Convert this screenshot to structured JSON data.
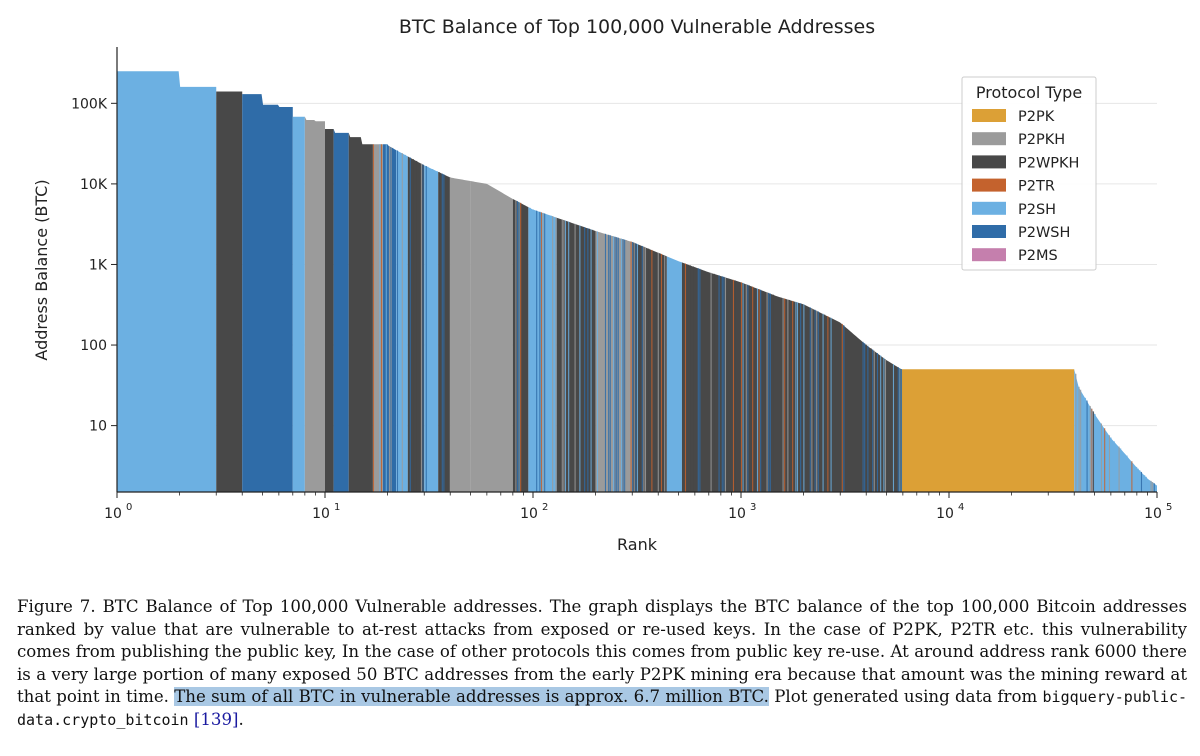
{
  "chart_data": {
    "type": "bar",
    "title": "BTC Balance of Top 100,000 Vulnerable Addresses",
    "xlabel": "Rank",
    "ylabel": "Address Balance (BTC)",
    "x_scale": "log",
    "y_scale": "log",
    "xlim": [
      1,
      100000
    ],
    "ylim": [
      1.5,
      500000
    ],
    "x_ticks": [
      1,
      10,
      100,
      1000,
      10000,
      100000
    ],
    "x_tick_labels": [
      "10",
      "10",
      "10",
      "10",
      "10",
      "10"
    ],
    "x_tick_exponents": [
      "0",
      "1",
      "2",
      "3",
      "4",
      "5"
    ],
    "y_ticks": [
      10,
      100,
      1000,
      10000,
      100000
    ],
    "y_tick_labels": [
      "10",
      "100",
      "1K",
      "10K",
      "100K"
    ],
    "grid": "horizontal",
    "legend": {
      "title": "Protocol Type",
      "placement": "upper-right",
      "entries": [
        {
          "name": "P2PK",
          "color": "#dca036"
        },
        {
          "name": "P2PKH",
          "color": "#9b9b9b"
        },
        {
          "name": "P2WPKH",
          "color": "#484848"
        },
        {
          "name": "P2TR",
          "color": "#c4622d"
        },
        {
          "name": "P2SH",
          "color": "#6cb0e2"
        },
        {
          "name": "P2WSH",
          "color": "#2f6ca8"
        },
        {
          "name": "P2MS",
          "color": "#c57fad"
        }
      ]
    },
    "curve": {
      "rank": [
        1,
        2,
        3,
        4,
        5,
        6,
        7,
        8,
        9,
        10,
        11,
        13,
        15,
        20,
        30,
        40,
        60,
        80,
        100,
        200,
        300,
        500,
        700,
        1000,
        1500,
        2000,
        3000,
        4000,
        5000,
        5900,
        6000,
        40000,
        42000,
        50000,
        60000,
        70000,
        80000,
        90000,
        100000
      ],
      "balance": [
        250000,
        160000,
        140000,
        130000,
        96000,
        90000,
        68000,
        62000,
        60000,
        48000,
        43000,
        38000,
        31000,
        30000,
        17000,
        12000,
        10000,
        6500,
        4800,
        2600,
        1900,
        1100,
        800,
        600,
        400,
        320,
        190,
        100,
        65,
        50,
        50,
        50,
        30,
        14,
        7,
        4.5,
        3,
        2.2,
        1.8
      ]
    },
    "segments": [
      {
        "from": 1,
        "to": 3,
        "type": "P2SH"
      },
      {
        "from": 3,
        "to": 4,
        "type": "P2WPKH"
      },
      {
        "from": 4,
        "to": 7,
        "type": "P2WSH"
      },
      {
        "from": 7,
        "to": 8,
        "type": "P2SH"
      },
      {
        "from": 8,
        "to": 10,
        "type": "P2PKH"
      },
      {
        "from": 10,
        "to": 11,
        "type": "P2WPKH"
      },
      {
        "from": 11,
        "to": 13,
        "type": "P2WSH"
      },
      {
        "from": 13,
        "to": 17,
        "type": "P2WPKH"
      },
      {
        "from": 17,
        "to": 19,
        "type": "P2PKH"
      },
      {
        "from": 19,
        "to": 22,
        "type": "P2WSH"
      },
      {
        "from": 22,
        "to": 25,
        "type": "P2SH"
      },
      {
        "from": 25,
        "to": 30,
        "type": "P2WPKH"
      },
      {
        "from": 30,
        "to": 35,
        "type": "P2SH"
      },
      {
        "from": 35,
        "to": 40,
        "type": "P2WPKH"
      },
      {
        "from": 40,
        "to": 50,
        "type": "P2PKH"
      },
      {
        "from": 50,
        "to": 80,
        "type": "P2PKH"
      },
      {
        "from": 80,
        "to": 95,
        "type": "P2WPKH"
      },
      {
        "from": 95,
        "to": 130,
        "type": "P2SH"
      },
      {
        "from": 130,
        "to": 200,
        "type": "P2WPKH"
      },
      {
        "from": 200,
        "to": 300,
        "type": "P2PKH"
      },
      {
        "from": 300,
        "to": 440,
        "type": "P2WPKH"
      },
      {
        "from": 440,
        "to": 520,
        "type": "P2SH"
      },
      {
        "from": 520,
        "to": 1000,
        "type": "P2WPKH"
      },
      {
        "from": 1000,
        "to": 5900,
        "type": "P2WPKH"
      },
      {
        "from": 5900,
        "to": 40000,
        "type": "P2PK"
      },
      {
        "from": 40000,
        "to": 100000,
        "type": "P2SH"
      }
    ]
  },
  "caption": {
    "text_1": "Figure 7. BTC Balance of Top 100,000 Vulnerable addresses. The graph displays the BTC balance of the top 100,000 Bitcoin addresses ranked by value that are vulnerable to at-rest attacks from exposed or re-used keys. In the case of P2PK, P2TR etc. this vulnerability comes from publishing the public key, In the case of other protocols this comes from public key re-use. At around address rank 6000 there is a very large portion of many exposed 50 BTC addresses from the early P2PK mining era because that amount was the mining reward at that point in time.",
    "highlight": "The sum of all BTC in vulnerable addresses is approx. 6.7 million BTC.",
    "text_2": "Plot generated using data from",
    "code": "bigquery-public-data.crypto_bitcoin",
    "ref": "[139]",
    "end": "."
  }
}
